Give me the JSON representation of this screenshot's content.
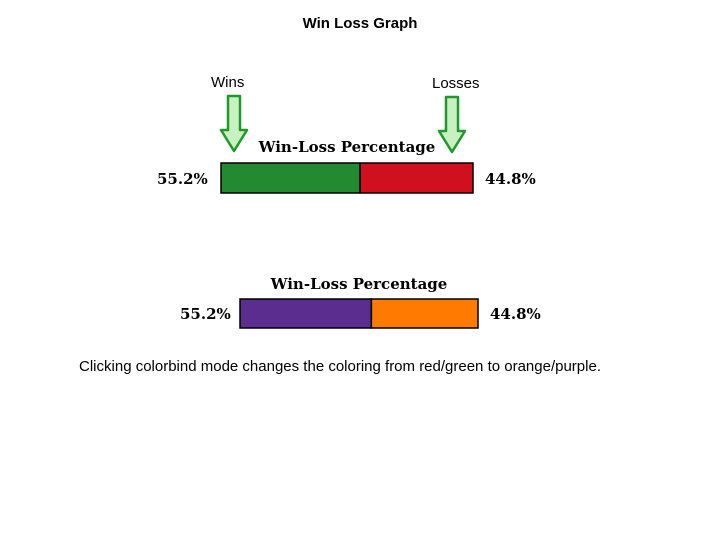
{
  "slide": {
    "title": "Win Loss Graph",
    "caption": "Clicking colorbind mode changes the coloring from red/green to orange/purple."
  },
  "callouts": {
    "wins_label": "Wins",
    "losses_label": "Losses",
    "arrow_fill": "#c8f0c0",
    "arrow_stroke": "#1f9a2a"
  },
  "chart_data": [
    {
      "type": "bar",
      "orientation": "horizontal-stacked",
      "title": "Win-Loss Percentage",
      "categories": [
        "Wins",
        "Losses"
      ],
      "values": [
        55.2,
        44.8
      ],
      "left_label": "55.2%",
      "right_label": "44.8%",
      "colors": [
        "#238a32",
        "#d0101e"
      ]
    },
    {
      "type": "bar",
      "orientation": "horizontal-stacked",
      "title": "Win-Loss Percentage",
      "categories": [
        "Wins",
        "Losses"
      ],
      "values": [
        55.2,
        44.8
      ],
      "left_label": "55.2%",
      "right_label": "44.8%",
      "colors": [
        "#5b2d8e",
        "#ff7a00"
      ]
    }
  ]
}
